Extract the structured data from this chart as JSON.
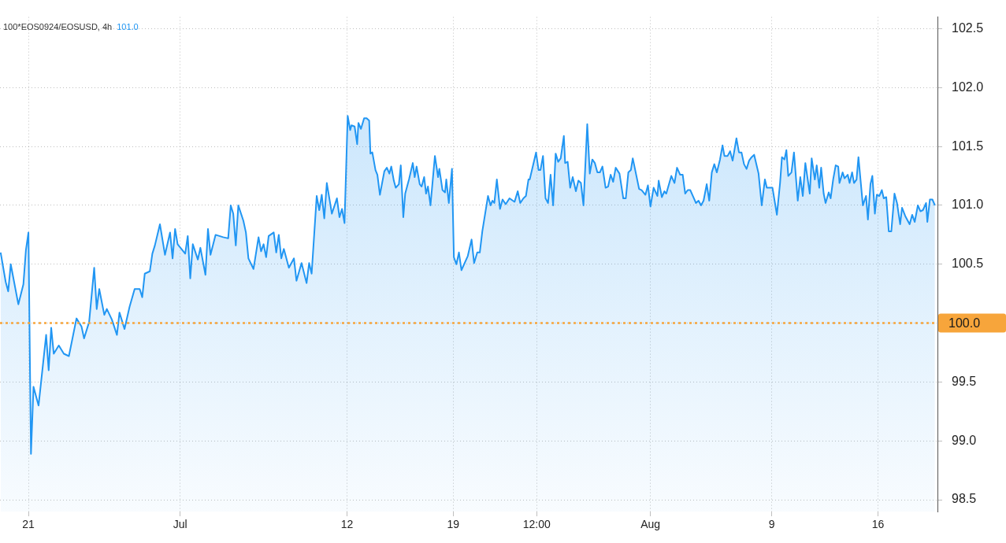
{
  "chart_data": {
    "type": "area",
    "title": "100*EOS0924/EOSUSD, 4h",
    "annotations": [
      "101.0"
    ],
    "xlim": [
      "--06-19T03:00",
      "--08-19T22:00"
    ],
    "xticks": [
      {
        "value": "--06-21",
        "label": "21"
      },
      {
        "value": "--07-01",
        "label": "Jul"
      },
      {
        "value": "--07-12",
        "label": "12"
      },
      {
        "value": "--07-19",
        "label": "19"
      },
      {
        "value": "--07-24T12:00",
        "label": "12:00"
      },
      {
        "value": "--08-01",
        "label": "Aug"
      },
      {
        "value": "--08-09",
        "label": "9"
      },
      {
        "value": "--08-16",
        "label": "16"
      }
    ],
    "ylim": [
      98.4,
      102.6
    ],
    "yticks": [
      98.5,
      {
        "value": 99,
        "label": "99.0"
      },
      99.5,
      {
        "value": 100,
        "label": "100.0"
      },
      100.5,
      {
        "value": 101,
        "label": "101.0"
      },
      101.5,
      {
        "value": 102,
        "label": "102.0"
      },
      102.5
    ],
    "grid": true,
    "marker": "none",
    "ref_lines": [
      {
        "axis": "y",
        "value": 100,
        "label": "100.0",
        "color": "#f7a53b",
        "line_style": "dotted"
      }
    ],
    "series": [
      {
        "color": "#2196f3",
        "x": [
          "--06-19T04:00",
          "--06-19T12:00",
          "--06-19T16:00",
          "--06-19T20:00",
          "--06-20T08:00",
          "--06-20T16:00",
          "--06-20T20:00",
          "--06-21T00:00",
          "--06-21T04:00",
          "--06-21T08:00",
          "--06-21T16:00",
          "--06-22T04:00",
          "--06-22T08:00",
          "--06-22T12:00",
          "--06-22T16:00",
          "--06-23T00:00",
          "--06-23T08:00",
          "--06-23T16:00",
          "--06-24T04:00",
          "--06-24T12:00",
          "--06-24T16:00",
          "--06-25T00:00",
          "--06-25T08:00",
          "--06-25T12:00",
          "--06-25T16:00",
          "--06-26T00:00",
          "--06-26T04:00",
          "--06-26T12:00",
          "--06-26T20:00",
          "--06-27T00:00",
          "--06-27T08:00",
          "--06-27T16:00",
          "--06-28T00:00",
          "--06-28T08:00",
          "--06-28T12:00",
          "--06-28T16:00",
          "--06-29T00:00",
          "--06-29T04:00",
          "--06-29T08:00",
          "--06-29T16:00",
          "--06-30T00:00",
          "--06-30T08:00",
          "--06-30T12:00",
          "--06-30T16:00",
          "--06-30T20:00",
          "--07-01T08:00",
          "--07-01T12:00",
          "--07-01T16:00",
          "--07-01T20:00",
          "--07-02T04:00",
          "--07-02T08:00",
          "--07-02T16:00",
          "--07-02T20:00",
          "--07-03T00:00",
          "--07-03T08:00",
          "--07-03T20:00",
          "--07-04T04:00",
          "--07-04T08:00",
          "--07-04T12:00",
          "--07-04T16:00",
          "--07-04T20:00",
          "--07-05T04:00",
          "--07-05T08:00",
          "--07-05T12:00",
          "--07-05T20:00",
          "--07-06T04:00",
          "--07-06T08:00",
          "--07-06T12:00",
          "--07-06T16:00",
          "--07-06T20:00",
          "--07-07T04:00",
          "--07-07T08:00",
          "--07-07T12:00",
          "--07-07T16:00",
          "--07-07T20:00",
          "--07-08T04:00",
          "--07-08T12:00",
          "--07-08T16:00",
          "--07-09T00:00",
          "--07-09T08:00",
          "--07-09T12:00",
          "--07-09T16:00",
          "--07-10T00:00",
          "--07-10T04:00",
          "--07-10T08:00",
          "--07-10T12:00",
          "--07-10T16:00",
          "--07-11T00:00",
          "--07-11T08:00",
          "--07-11T12:00",
          "--07-11T16:00",
          "--07-11T20:00",
          "--07-12T01:00",
          "--07-12T05:00",
          "--07-12T07:00",
          "--07-12T12:00",
          "--07-12T16:00",
          "--07-12T18:00",
          "--07-12T22:00",
          "--07-13T03:00",
          "--07-13T07:00",
          "--07-13T11:00",
          "--07-13T13:00",
          "--07-13T16:00",
          "--07-13T21:00",
          "--07-14T00:00",
          "--07-14T04:00",
          "--07-14T11:00",
          "--07-14T15:00",
          "--07-14T19:00",
          "--07-14T22:00",
          "--07-15T02:00",
          "--07-15T05:00",
          "--07-15T10:00",
          "--07-15T13:00",
          "--07-15T17:00",
          "--07-15T20:00",
          "--07-16T02:00",
          "--07-16T08:00",
          "--07-16T11:00",
          "--07-16T14:00",
          "--07-16T19:00",
          "--07-16T22:00",
          "--07-17T02:00",
          "--07-17T05:00",
          "--07-17T08:00",
          "--07-17T12:00",
          "--07-17T19:00",
          "--07-18T00:00",
          "--07-18T02:00",
          "--07-18T07:00",
          "--07-18T11:00",
          "--07-18T13:00",
          "--07-18T17:00",
          "--07-18T22:00",
          "--07-19T01:00",
          "--07-19T05:00",
          "--07-19T09:00",
          "--07-19T13:00",
          "--07-19T23:00",
          "--07-20T05:00",
          "--07-20T09:00",
          "--07-20T14:00",
          "--07-20T18:00",
          "--07-20T22:00",
          "--07-21T07:00",
          "--07-21T11:00",
          "--07-21T14:00",
          "--07-21T17:00",
          "--07-21T21:00",
          "--07-22T02:00",
          "--07-22T06:00",
          "--07-22T11:00",
          "--07-22T17:00",
          "--07-23T01:00",
          "--07-23T06:00",
          "--07-23T10:00",
          "--07-23T15:00",
          "--07-23T19:00",
          "--07-23T23:00",
          "--07-24T01:00",
          "--07-24T11:00",
          "--07-24T15:00",
          "--07-24T18:00",
          "--07-24T22:00",
          "--07-25T02:00",
          "--07-25T06:00",
          "--07-25T10:00",
          "--07-25T14:00",
          "--07-25T18:00",
          "--07-25T22:00",
          "--07-26T02:00",
          "--07-26T07:00",
          "--07-26T09:00",
          "--07-26T13:00",
          "--07-26T17:00",
          "--07-26T21:00",
          "--07-27T02:00",
          "--07-27T06:00",
          "--07-27T10:00",
          "--07-27T14:00",
          "--07-27T20:00",
          "--07-28T00:00",
          "--07-28T04:00",
          "--07-28T08:00",
          "--07-28T12:00",
          "--07-28T16:00",
          "--07-28T20:00",
          "--07-29T01:00",
          "--07-29T05:00",
          "--07-29T09:00",
          "--07-29T13:00",
          "--07-29T17:00",
          "--07-29T23:00",
          "--07-30T05:00",
          "--07-30T09:00",
          "--07-30T13:00",
          "--07-30T17:00",
          "--07-30T20:00",
          "--07-31T06:00",
          "--07-31T10:00",
          "--07-31T16:00",
          "--07-31T20:00",
          "--08-01T00:00",
          "--08-01T05:00",
          "--08-01T11:00",
          "--08-01T13:00",
          "--08-01T18:00",
          "--08-01T22:00",
          "--08-02T01:00",
          "--08-02T09:00",
          "--08-02T14:00",
          "--08-02T18:00",
          "--08-02T23:00",
          "--08-03T03:00",
          "--08-03T07:00",
          "--08-03T11:00",
          "--08-03T15:00",
          "--08-04T00:00",
          "--08-04T04:00",
          "--08-04T08:00",
          "--08-04T12:00",
          "--08-04T17:00",
          "--08-04T21:00",
          "--08-05T01:00",
          "--08-05T05:00",
          "--08-05T09:00",
          "--08-05T14:00",
          "--08-05T18:00",
          "--08-05T21:00",
          "--08-06T02:00",
          "--08-06T06:00",
          "--08-06T10:00",
          "--08-06T16:00",
          "--08-06T20:00",
          "--08-07T00:00",
          "--08-07T04:00",
          "--08-07T08:00",
          "--08-07T12:00",
          "--08-07T16:00",
          "--08-07T20:00",
          "--08-08T03:00",
          "--08-08T08:00",
          "--08-08T13:00",
          "--08-08T16:00",
          "--08-09T01:00",
          "--08-09T08:00",
          "--08-09T13:00",
          "--08-09T16:00",
          "--08-09T20:00",
          "--08-09T23:00",
          "--08-10T02:00",
          "--08-10T07:00",
          "--08-10T11:00",
          "--08-10T17:00",
          "--08-10T21:00",
          "--08-11T01:00",
          "--08-11T05:00",
          "--08-11T12:00",
          "--08-11T15:00",
          "--08-11T20:00",
          "--08-11T23:00",
          "--08-12T03:00",
          "--08-12T06:00",
          "--08-12T10:00",
          "--08-12T13:00",
          "--08-12T18:00",
          "--08-12T21:00",
          "--08-13T01:00",
          "--08-13T05:00",
          "--08-13T09:00",
          "--08-13T11:00",
          "--08-13T16:00",
          "--08-13T19:00",
          "--08-14T00:00",
          "--08-14T03:00",
          "--08-14T07:00",
          "--08-14T10:00",
          "--08-14T14:00",
          "--08-14T17:00",
          "--08-15T00:00",
          "--08-15T05:00",
          "--08-15T08:00",
          "--08-15T12:00",
          "--08-15T15:00",
          "--08-15T19:00",
          "--08-15T22:00",
          "--08-16T02:00",
          "--08-16T06:00",
          "--08-16T09:00",
          "--08-16T13:00",
          "--08-16T17:00",
          "--08-16T21:00",
          "--08-17T02:00",
          "--08-17T06:00",
          "--08-17T11:00",
          "--08-17T14:00",
          "--08-17T19:00",
          "--08-17T21:00",
          "--08-18T02:00",
          "--08-18T06:00",
          "--08-18T10:00",
          "--08-18T15:00",
          "--08-18T19:00",
          "--08-18T23:00",
          "--08-19T04:00",
          "--08-19T06:00",
          "--08-19T10:00",
          "--08-19T14:00",
          "--08-19T18:00"
        ],
        "values": [
          100.6,
          100.35,
          100.27,
          100.5,
          100.16,
          100.33,
          100.62,
          100.77,
          98.89,
          99.46,
          99.3,
          99.9,
          99.6,
          99.96,
          99.74,
          99.81,
          99.74,
          99.72,
          100.04,
          99.97,
          99.87,
          100.01,
          100.47,
          100.12,
          100.29,
          100.07,
          100.12,
          100.03,
          99.9,
          100.09,
          99.95,
          100.14,
          100.29,
          100.29,
          100.22,
          100.42,
          100.44,
          100.59,
          100.66,
          100.84,
          100.58,
          100.77,
          100.55,
          100.8,
          100.67,
          100.59,
          100.74,
          100.38,
          100.67,
          100.54,
          100.64,
          100.41,
          100.8,
          100.58,
          100.75,
          100.73,
          100.72,
          101.0,
          100.93,
          100.66,
          101.0,
          100.87,
          100.77,
          100.55,
          100.46,
          100.73,
          100.61,
          100.67,
          100.56,
          100.74,
          100.77,
          100.6,
          100.75,
          100.55,
          100.63,
          100.47,
          100.55,
          100.36,
          100.51,
          100.34,
          100.51,
          100.42,
          101.08,
          100.96,
          101.09,
          100.89,
          101.19,
          100.93,
          101.06,
          100.9,
          100.97,
          100.85,
          101.76,
          101.64,
          101.68,
          101.67,
          101.52,
          101.7,
          101.65,
          101.74,
          101.74,
          101.72,
          101.44,
          101.45,
          101.3,
          101.26,
          101.09,
          101.29,
          101.32,
          101.27,
          101.33,
          101.21,
          101.15,
          101.18,
          101.34,
          100.9,
          101.1,
          101.22,
          101.36,
          101.24,
          101.33,
          101.18,
          101.16,
          101.24,
          101.1,
          101.16,
          101.0,
          101.42,
          101.24,
          101.31,
          101.13,
          101.11,
          101.22,
          101.02,
          101.31,
          100.56,
          100.5,
          100.6,
          100.45,
          100.57,
          100.71,
          100.51,
          100.6,
          100.6,
          100.78,
          101.08,
          101.0,
          101.04,
          101.02,
          101.22,
          100.97,
          101.05,
          101.01,
          101.06,
          101.03,
          101.12,
          101.02,
          101.06,
          101.08,
          101.22,
          101.22,
          101.45,
          101.3,
          101.3,
          101.42,
          101.06,
          101.02,
          101.26,
          101.0,
          101.44,
          101.37,
          101.4,
          101.59,
          101.36,
          101.37,
          101.15,
          101.24,
          101.12,
          101.21,
          101.19,
          101.0,
          101.69,
          101.27,
          101.39,
          101.36,
          101.28,
          101.28,
          101.33,
          101.15,
          101.16,
          101.26,
          101.2,
          101.32,
          101.27,
          101.06,
          101.06,
          101.28,
          101.3,
          101.4,
          101.14,
          101.13,
          101.09,
          101.17,
          100.99,
          101.15,
          101.08,
          101.21,
          101.07,
          101.12,
          101.1,
          101.25,
          101.19,
          101.32,
          101.26,
          101.26,
          101.1,
          101.13,
          101.13,
          101.02,
          101.04,
          101.0,
          101.04,
          101.18,
          101.04,
          101.28,
          101.35,
          101.28,
          101.39,
          101.51,
          101.42,
          101.42,
          101.46,
          101.38,
          101.57,
          101.45,
          101.45,
          101.35,
          101.31,
          101.38,
          101.41,
          101.43,
          101.27,
          101.0,
          101.22,
          101.15,
          101.15,
          100.92,
          101.19,
          101.41,
          101.39,
          101.47,
          101.25,
          101.28,
          101.45,
          101.04,
          101.24,
          101.08,
          101.36,
          101.1,
          101.4,
          101.22,
          101.34,
          101.15,
          101.32,
          101.1,
          101.02,
          101.11,
          101.06,
          101.22,
          101.34,
          101.33,
          101.19,
          101.28,
          101.23,
          101.26,
          101.19,
          101.28,
          101.19,
          101.22,
          101.41,
          101.0,
          101.08,
          100.88,
          101.18,
          101.25,
          100.93,
          101.09,
          101.08,
          101.13,
          101.06,
          101.07,
          100.78,
          100.78,
          101.1,
          101.02,
          100.84,
          100.98,
          100.91,
          100.89,
          100.84,
          100.92,
          100.86,
          101.0,
          100.95,
          100.96,
          101.02,
          100.86,
          101.05,
          101.05,
          101.0
        ]
      }
    ]
  }
}
